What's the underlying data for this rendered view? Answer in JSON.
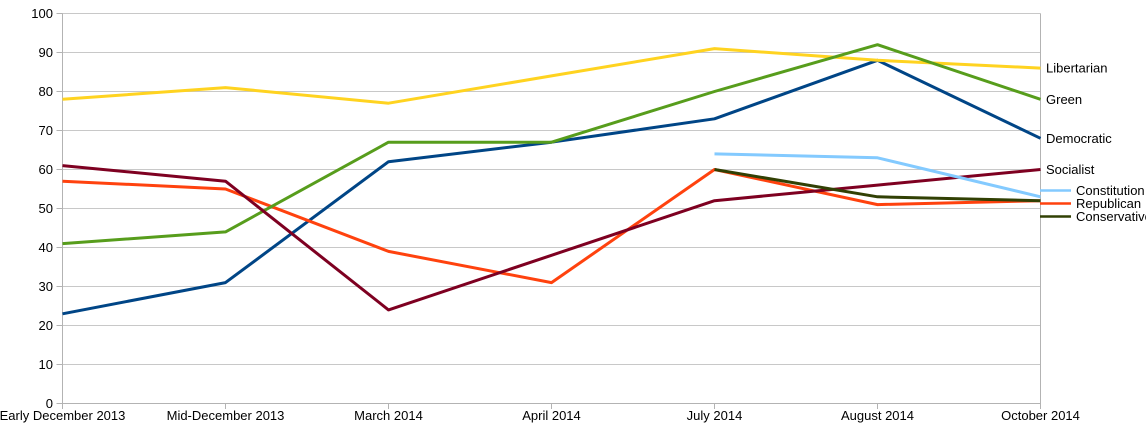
{
  "chart_data": {
    "type": "line",
    "title": "",
    "xlabel": "",
    "ylabel": "",
    "categories": [
      "Early December 2013",
      "Mid-December 2013",
      "March 2014",
      "April 2014",
      "July 2014",
      "August 2014",
      "October 2014"
    ],
    "series": [
      {
        "name": "Democratic",
        "color": "#004586",
        "values": [
          23,
          31,
          62,
          67,
          73,
          88,
          68
        ],
        "label": "end"
      },
      {
        "name": "Republican",
        "color": "#FF420E",
        "values": [
          57,
          55,
          39,
          31,
          60,
          51,
          52
        ],
        "label": "legend"
      },
      {
        "name": "Libertarian",
        "color": "#FFD320",
        "values": [
          78,
          81,
          77,
          84,
          91,
          88,
          86
        ],
        "label": "end"
      },
      {
        "name": "Green",
        "color": "#579D1C",
        "values": [
          41,
          44,
          67,
          67,
          80,
          92,
          78
        ],
        "label": "end"
      },
      {
        "name": "Socialist",
        "color": "#7E0021",
        "values": [
          61,
          57,
          24,
          38,
          52,
          56,
          60
        ],
        "label": "end"
      },
      {
        "name": "Constitution",
        "color": "#83CAFF",
        "values": [
          null,
          null,
          null,
          null,
          64,
          63,
          53
        ],
        "label": "legend"
      },
      {
        "name": "Conservative",
        "color": "#314004",
        "values": [
          null,
          null,
          null,
          null,
          60,
          53,
          52
        ],
        "label": "legend"
      }
    ],
    "legend_order": [
      "Constitution",
      "Republican",
      "Conservative"
    ],
    "legend_position": "right-of-plot",
    "ylim": [
      0,
      100
    ],
    "ytick_step": 10,
    "grid": "horizontal",
    "colors": {
      "grid": "#c8c8c8",
      "axis": "#b3b3b3",
      "text": "#000000",
      "background": "#ffffff"
    }
  }
}
